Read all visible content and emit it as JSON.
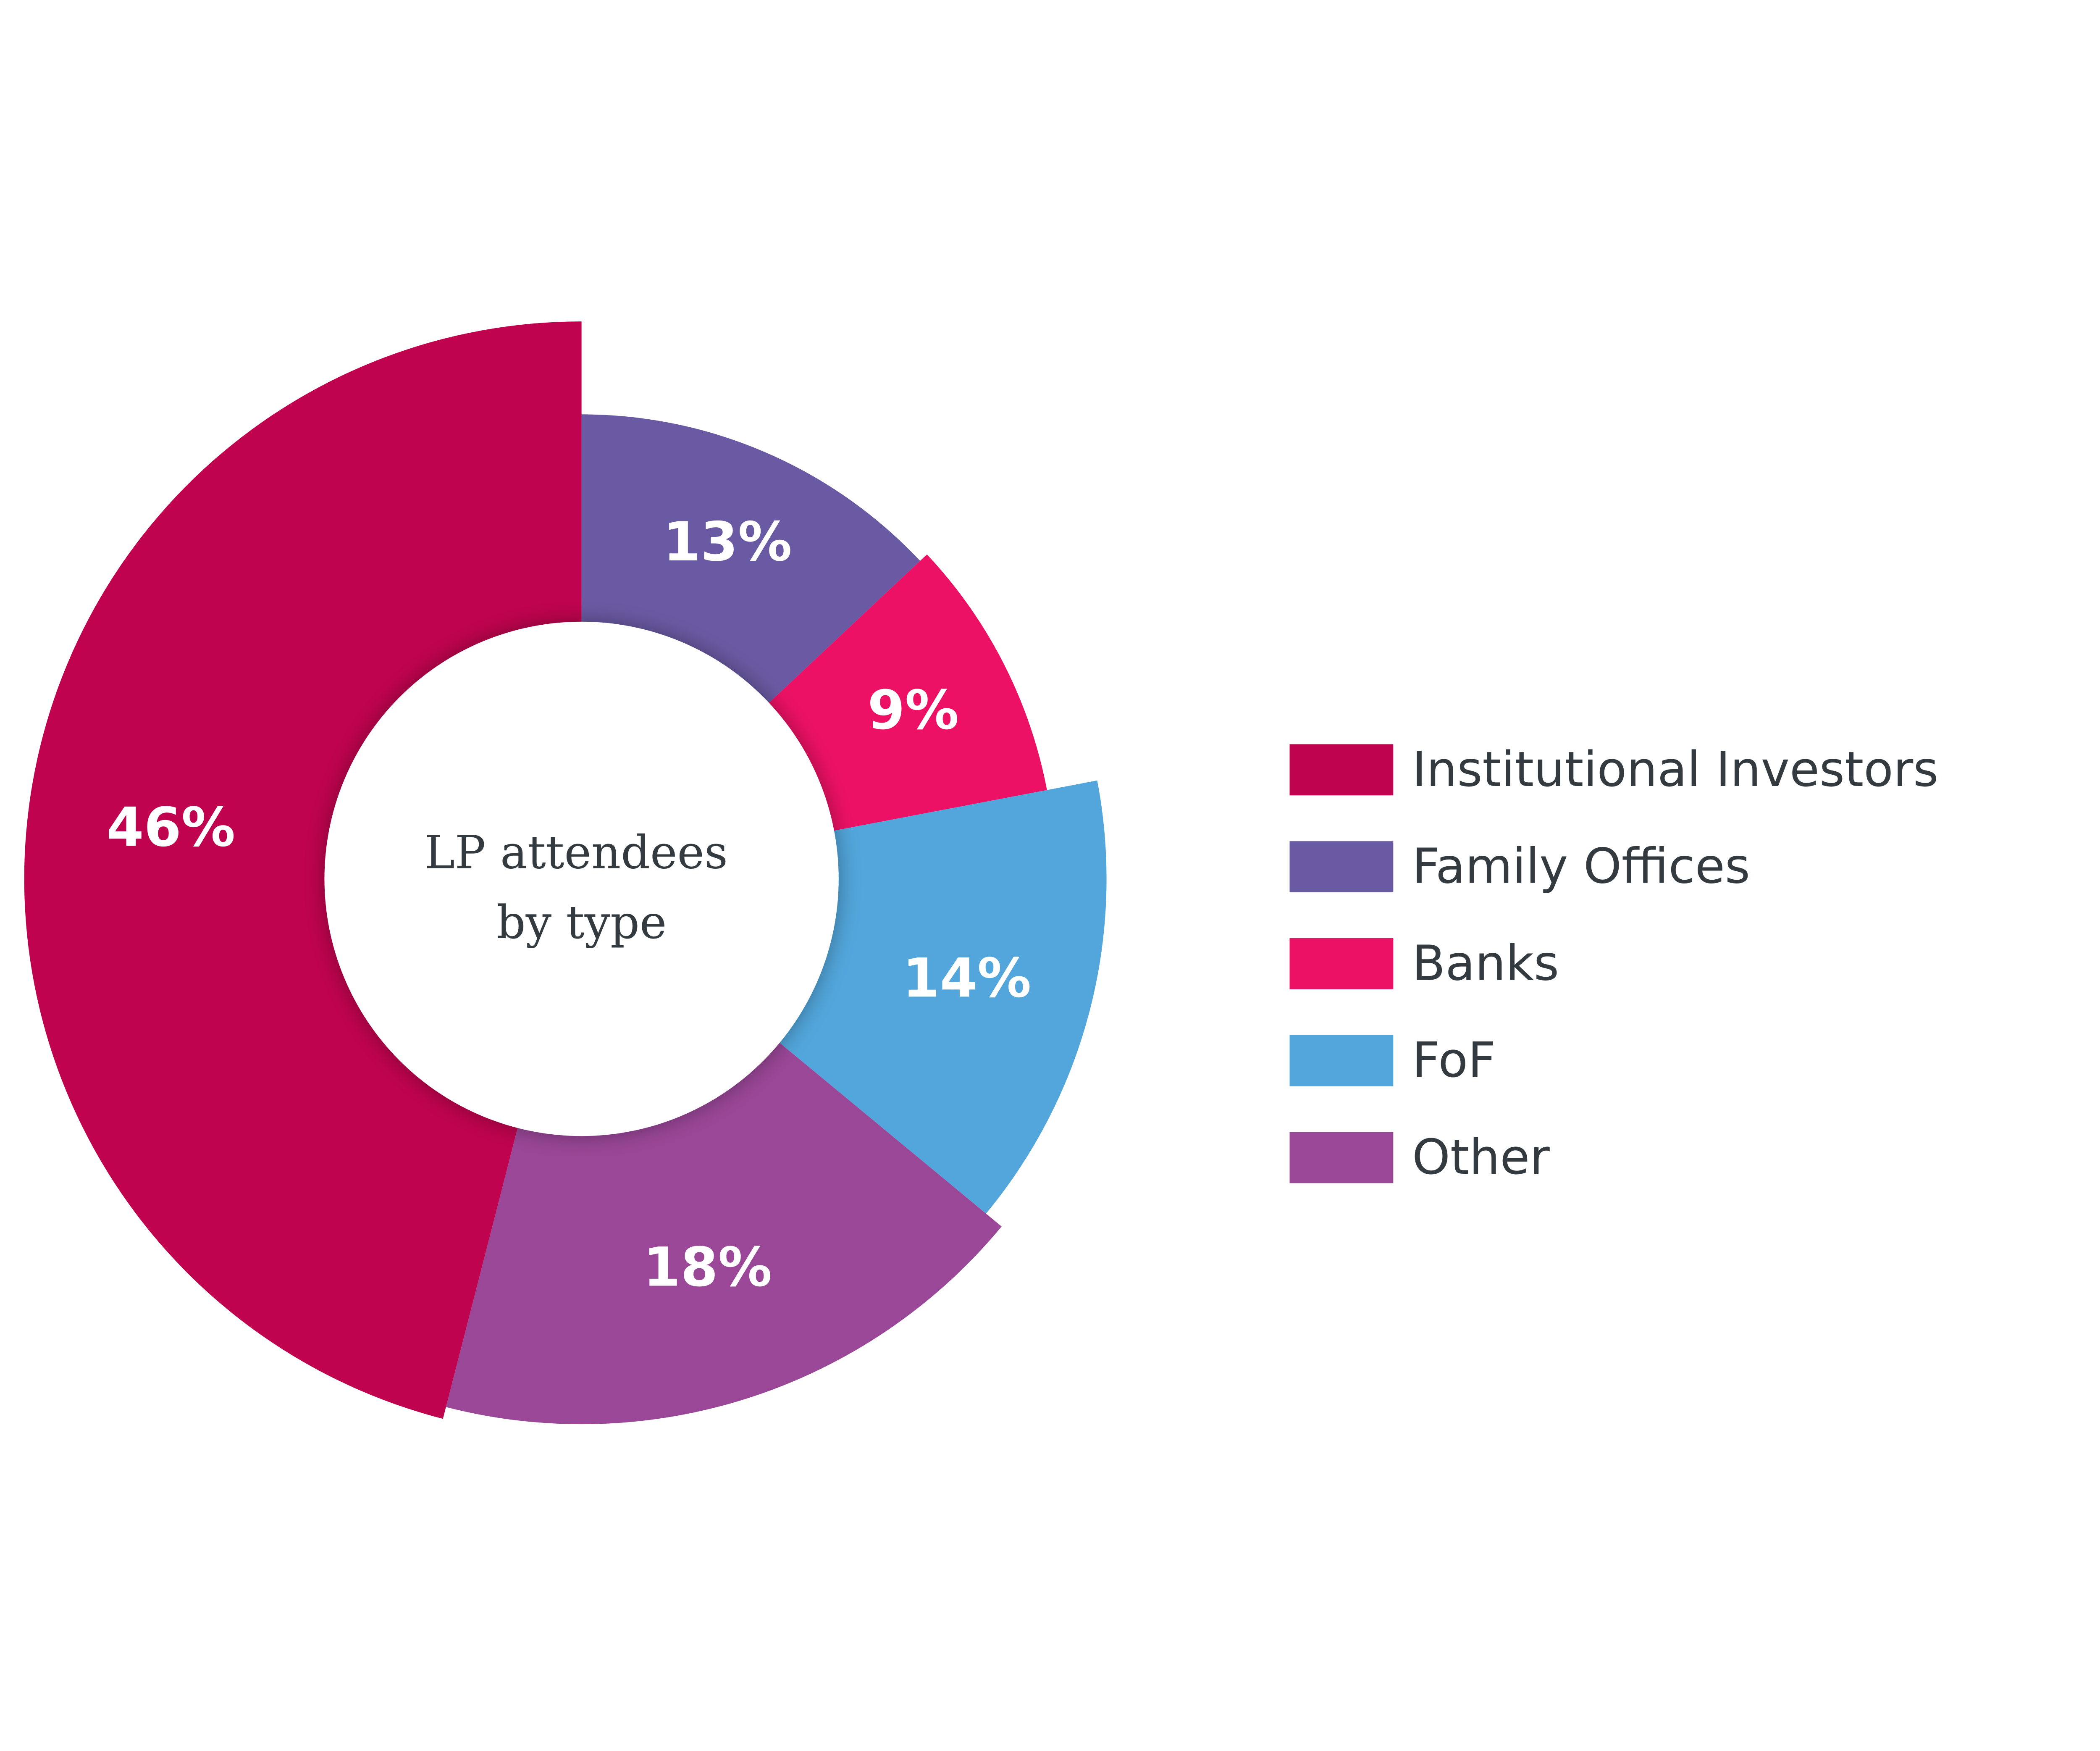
{
  "chart_data": {
    "type": "pie",
    "title": "LP attendees by type",
    "title_lines": [
      "LP attendees",
      "by type"
    ],
    "legend_position": "right",
    "slices": [
      {
        "label": "Family Offices",
        "value": 13,
        "display": "13%",
        "color": "#6A5AA3"
      },
      {
        "label": "Banks",
        "value": 9,
        "display": "9%",
        "color": "#EC1164"
      },
      {
        "label": "FoF",
        "value": 14,
        "display": "14%",
        "color": "#52A6DB"
      },
      {
        "label": "Other",
        "value": 18,
        "display": "18%",
        "color": "#9A4797"
      },
      {
        "label": "Institutional Investors",
        "value": 46,
        "display": "46%",
        "color": "#C0034F"
      }
    ],
    "legend_order": [
      "Institutional Investors",
      "Family Offices",
      "Banks",
      "FoF",
      "Other"
    ]
  }
}
